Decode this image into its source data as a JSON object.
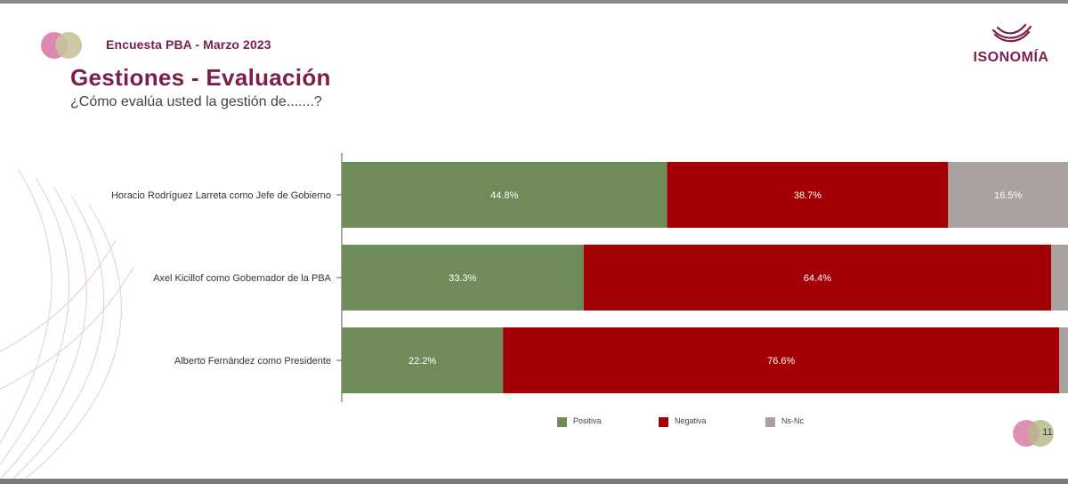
{
  "header": {
    "survey_name": "Encuesta PBA - Marzo 2023",
    "title": "Gestiones - Evaluación",
    "question": "¿Cómo evalúa usted la gestión de.......?"
  },
  "logo": {
    "text": "ISONOMÍA"
  },
  "footer": {
    "page_number": "11"
  },
  "colors": {
    "positiva": "#6f8b5a",
    "negativa": "#a20004",
    "ns_nc": "#aaa29e",
    "brand": "#7a1f4d"
  },
  "chart_data": {
    "type": "bar",
    "orientation": "horizontal",
    "stacked": true,
    "categories": [
      "Horacio Rodríguez Larreta como Jefe de Gobierno",
      "Axel Kicillof como Gobernador de la PBA",
      "Alberto Fernández como Presidente"
    ],
    "series": [
      {
        "name": "Positiva",
        "values": [
          44.8,
          33.3,
          22.2
        ],
        "labels": [
          "44.8%",
          "33.3%",
          "22.2%"
        ]
      },
      {
        "name": "Negativa",
        "values": [
          38.7,
          64.4,
          76.6
        ],
        "labels": [
          "38.7%",
          "64.4%",
          "76.6%"
        ]
      },
      {
        "name": "Ns-Nc",
        "values": [
          16.5,
          2.3,
          1.2
        ],
        "labels": [
          "16.5%",
          "",
          ""
        ]
      }
    ],
    "xlim": [
      0,
      100
    ],
    "legend_position": "bottom",
    "grid": false
  }
}
